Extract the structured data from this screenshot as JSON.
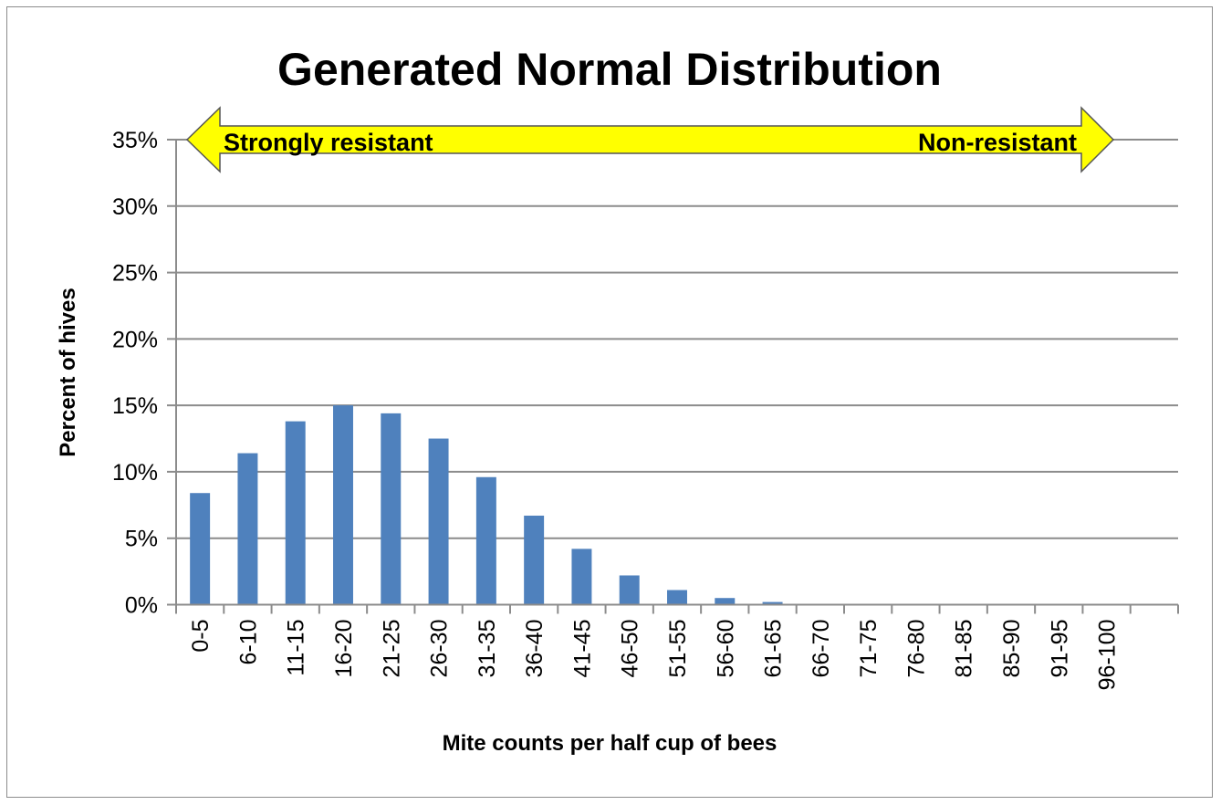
{
  "chart_data": {
    "type": "bar",
    "title": "Generated Normal Distribution",
    "xlabel": "Mite counts per half cup of bees",
    "ylabel": "Percent of hives",
    "categories": [
      "0-5",
      "6-10",
      "11-15",
      "16-20",
      "21-25",
      "26-30",
      "31-35",
      "36-40",
      "41-45",
      "46-50",
      "51-55",
      "56-60",
      "61-65",
      "66-70",
      "71-75",
      "76-80",
      "81-85",
      "85-90",
      "91-95",
      "96-100"
    ],
    "values": [
      8.4,
      11.4,
      13.8,
      15.0,
      14.4,
      12.5,
      9.6,
      6.7,
      4.2,
      2.2,
      1.1,
      0.5,
      0.2,
      0,
      0,
      0,
      0,
      0,
      0,
      0
    ],
    "ylim": [
      0,
      35
    ],
    "yticks": [
      "0%",
      "5%",
      "10%",
      "15%",
      "20%",
      "25%",
      "30%",
      "35%"
    ],
    "grid": true,
    "bar_color": "#4F81BD",
    "annotation": {
      "left_label": "Strongly resistant",
      "right_label": "Non-resistant",
      "color": "#FFFF00"
    }
  }
}
